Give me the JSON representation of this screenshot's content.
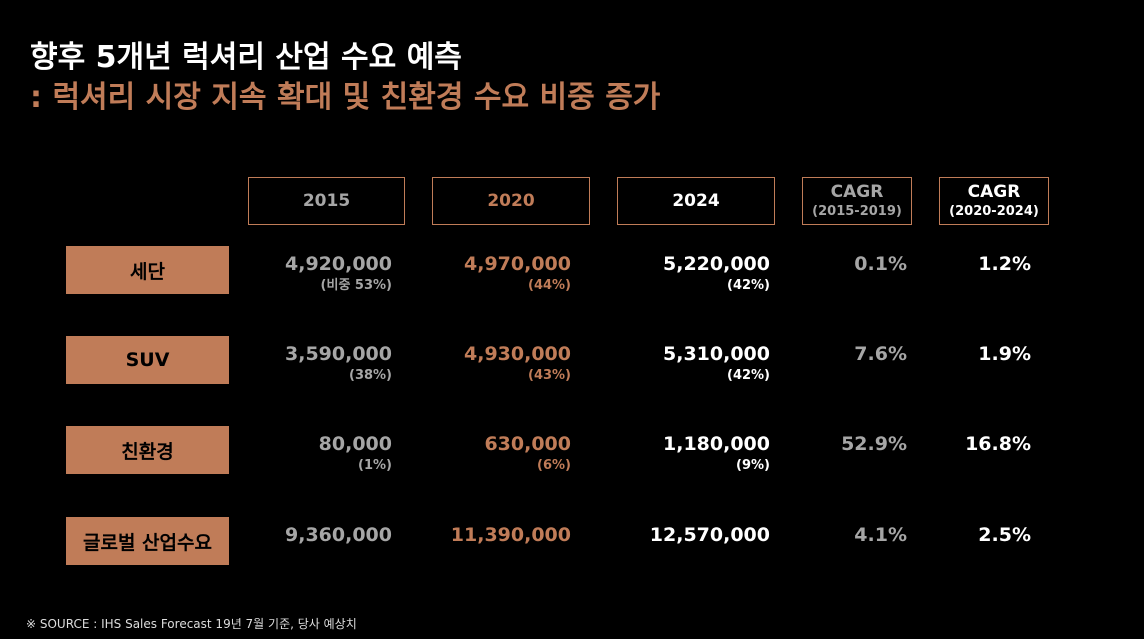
{
  "title": {
    "line1": "향후 5개년 럭셔리 산업 수요 예측",
    "line2": ": 럭셔리 시장 지속 확대 및 친환경 수요 비중 증가"
  },
  "colors": {
    "accent": "#c07c58",
    "col_2015": "#a6a6a6",
    "col_2020": "#c07c58",
    "col_2024": "#ffffff",
    "cagr_1": "#a6a6a6",
    "cagr_2": "#ffffff"
  },
  "chart_data": {
    "type": "table",
    "columns": [
      {
        "label": "2015",
        "sub": ""
      },
      {
        "label": "2020",
        "sub": ""
      },
      {
        "label": "2024",
        "sub": ""
      },
      {
        "label": "CAGR",
        "sub": "(2015-2019)"
      },
      {
        "label": "CAGR",
        "sub": "(2020-2024)"
      }
    ],
    "rows": [
      {
        "label": "세단",
        "values": [
          "4,920,000",
          "4,970,000",
          "5,220,000"
        ],
        "shares": [
          "(비중 53%)",
          "(44%)",
          "(42%)"
        ],
        "cagr": [
          "0.1%",
          "1.2%"
        ]
      },
      {
        "label": "SUV",
        "values": [
          "3,590,000",
          "4,930,000",
          "5,310,000"
        ],
        "shares": [
          "(38%)",
          "(43%)",
          "(42%)"
        ],
        "cagr": [
          "7.6%",
          "1.9%"
        ]
      },
      {
        "label": "친환경",
        "values": [
          "80,000",
          "630,000",
          "1,180,000"
        ],
        "shares": [
          "(1%)",
          "(6%)",
          "(9%)"
        ],
        "cagr": [
          "52.9%",
          "16.8%"
        ]
      },
      {
        "label": "글로벌 산업수요",
        "values": [
          "9,360,000",
          "11,390,000",
          "12,570,000"
        ],
        "shares": [
          "",
          "",
          ""
        ],
        "cagr": [
          "4.1%",
          "2.5%"
        ]
      }
    ]
  },
  "footer": "※ SOURCE : IHS Sales Forecast 19년 7월 기준, 당사 예상치"
}
